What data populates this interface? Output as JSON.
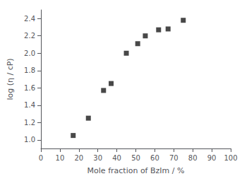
{
  "chart_data": {
    "type": "scatter",
    "x": [
      17,
      25,
      33,
      37,
      45,
      51,
      55,
      62,
      67,
      75
    ],
    "y": [
      1.05,
      1.25,
      1.57,
      1.65,
      2.0,
      2.11,
      2.2,
      2.27,
      2.28,
      2.38
    ],
    "xlabel": "Mole fraction of BzIm / %",
    "ylabel": "log (η / cP)",
    "xlim": [
      0,
      100
    ],
    "ylim": [
      0.9,
      2.5
    ],
    "xticks": [
      0,
      10,
      20,
      30,
      40,
      50,
      60,
      70,
      80,
      90,
      100
    ],
    "yticks": [
      {
        "value": 1.0,
        "label": "1.0"
      },
      1.2,
      1.4,
      1.6,
      1.8,
      {
        "value": 2.0,
        "label": "2.0"
      },
      2.2,
      2.4
    ],
    "color": "#1a1a1a",
    "marker": "square",
    "grid": false
  }
}
